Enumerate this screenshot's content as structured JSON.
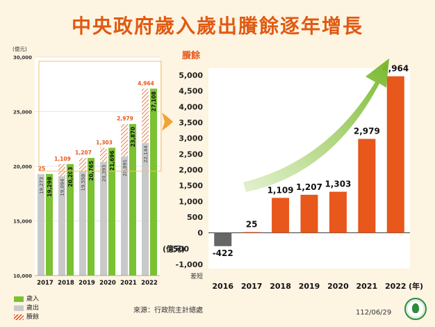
{
  "title": "中央政府歲入歲出賸餘逐年增長",
  "source": "來源：行政院主計總處",
  "date": "112/06/29",
  "colors": {
    "revenue": "#7ac231",
    "expenditure": "#c9c9c9",
    "surplus": "#e8571b",
    "deficit": "#666666",
    "title": "#e05a12",
    "highlight_box": "#f3c16b",
    "arrow": "#8cc63f"
  },
  "left_chart_legend": {
    "revenue": "歲入",
    "expenditure": "歲出",
    "surplus": "賸餘"
  },
  "chart_data": [
    {
      "type": "bar",
      "unit_label": "(億元)",
      "categories": [
        "2017",
        "2018",
        "2019",
        "2020",
        "2021",
        "2022"
      ],
      "ylim": [
        10000,
        30000
      ],
      "yticks": [
        "10,000",
        "15,000",
        "20,000",
        "25,000",
        "30,000"
      ],
      "series": [
        {
          "name": "歲入",
          "values": [
            19298,
            20203,
            20765,
            21696,
            23870,
            27108
          ],
          "labels": [
            "19,298",
            "20,203",
            "20,765",
            "21,696",
            "23,870",
            "27,108"
          ]
        },
        {
          "name": "歲出",
          "values": [
            19273,
            19094,
            19558,
            20393,
            20891,
            22144
          ],
          "labels": [
            "19,273",
            "19,094",
            "19,558",
            "20,393",
            "20,891",
            "22,144"
          ]
        },
        {
          "name": "賸餘",
          "values": [
            25,
            1109,
            1207,
            1303,
            2979,
            4964
          ],
          "labels": [
            "25",
            "1,109",
            "1,207",
            "1,303",
            "2,979",
            "4,964"
          ]
        }
      ]
    },
    {
      "type": "bar",
      "title": "賸餘",
      "ylabel": "(億元)",
      "negative_label": "差短",
      "xlabel_unit": "(年)",
      "categories": [
        "2016",
        "2017",
        "2018",
        "2019",
        "2020",
        "2021",
        "2022"
      ],
      "values": [
        -422,
        25,
        1109,
        1207,
        1303,
        2979,
        4964
      ],
      "value_labels": [
        "-422",
        "25",
        "1,109",
        "1,207",
        "1,303",
        "2,979",
        "4,964"
      ],
      "ylim": [
        -1000,
        5000
      ],
      "yticks": [
        "-1,000",
        "-500",
        "0",
        "500",
        "1,000",
        "1,500",
        "2,000",
        "2,500",
        "3,000",
        "3,500",
        "4,000",
        "4,500",
        "5,000"
      ]
    }
  ]
}
